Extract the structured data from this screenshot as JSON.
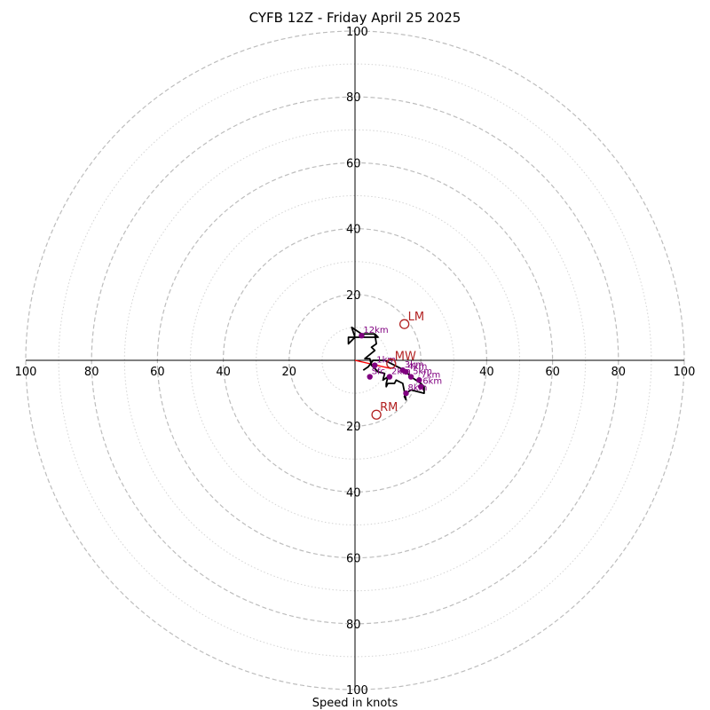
{
  "chart_data": {
    "type": "scatter",
    "title": "CYFB 12Z - Friday April 25 2025",
    "xlabel": "Speed in knots",
    "ring_max": 100,
    "major_rings": [
      20,
      40,
      60,
      80,
      100
    ],
    "minor_rings": [
      10,
      30,
      50,
      70,
      90
    ],
    "x_ticks": [
      {
        "value": -100,
        "label": "100"
      },
      {
        "value": -80,
        "label": "80"
      },
      {
        "value": -60,
        "label": "60"
      },
      {
        "value": -40,
        "label": "40"
      },
      {
        "value": -20,
        "label": "20"
      },
      {
        "value": 40,
        "label": "40"
      },
      {
        "value": 60,
        "label": "60"
      },
      {
        "value": 80,
        "label": "80"
      },
      {
        "value": 100,
        "label": "100"
      }
    ],
    "y_ticks": [
      {
        "value": 100,
        "label": "100"
      },
      {
        "value": 80,
        "label": "80"
      },
      {
        "value": 60,
        "label": "60"
      },
      {
        "value": 40,
        "label": "40"
      },
      {
        "value": 20,
        "label": "20"
      },
      {
        "value": -20,
        "label": "20"
      },
      {
        "value": -40,
        "label": "40"
      },
      {
        "value": -60,
        "label": "60"
      },
      {
        "value": -80,
        "label": "80"
      },
      {
        "value": -100,
        "label": "100"
      }
    ],
    "hodograph_trace": [
      [
        2.5,
        -3
      ],
      [
        4,
        -2
      ],
      [
        5.5,
        0
      ],
      [
        9,
        0
      ],
      [
        11,
        -1
      ],
      [
        13,
        -2
      ],
      [
        15,
        -3
      ],
      [
        16,
        -4
      ],
      [
        17,
        -5
      ],
      [
        18.5,
        -6
      ],
      [
        20,
        -7
      ],
      [
        21,
        -8
      ],
      [
        21,
        -10
      ],
      [
        17,
        -9
      ],
      [
        15.5,
        -10
      ],
      [
        15,
        -11
      ],
      [
        15.5,
        -12
      ],
      [
        14.5,
        -7
      ],
      [
        12.5,
        -6
      ],
      [
        12,
        -7
      ],
      [
        10,
        -7
      ],
      [
        9.5,
        -8
      ],
      [
        9.5,
        -7
      ],
      [
        10,
        -5
      ],
      [
        8.5,
        -6
      ],
      [
        9,
        -4
      ],
      [
        7,
        -3.5
      ],
      [
        5,
        -1.5
      ],
      [
        4.5,
        0.5
      ],
      [
        3,
        0.5
      ],
      [
        6,
        3
      ],
      [
        5,
        4
      ],
      [
        6.5,
        5
      ],
      [
        6,
        8
      ],
      [
        2,
        8
      ],
      [
        -1,
        10
      ],
      [
        0,
        7
      ],
      [
        -2,
        5
      ],
      [
        -2,
        7
      ],
      [
        7,
        7
      ],
      [
        6,
        8
      ]
    ],
    "height_markers": [
      {
        "label": "Sfc",
        "u": 4.5,
        "v": -5
      },
      {
        "label": "1km",
        "u": 6,
        "v": -1.5
      },
      {
        "label": "2km",
        "u": 10.5,
        "v": -5
      },
      {
        "label": "3km",
        "u": 14.5,
        "v": -3
      },
      {
        "label": "4km",
        "u": 15.5,
        "v": -3.5
      },
      {
        "label": "5km",
        "u": 17,
        "v": -5
      },
      {
        "label": "6km",
        "u": 20,
        "v": -8
      },
      {
        "label": "7km",
        "u": 19.5,
        "v": -6
      },
      {
        "label": "8km",
        "u": 15.5,
        "v": -10
      },
      {
        "label": "12km",
        "u": 2,
        "v": 7.5
      }
    ],
    "storm_motions": [
      {
        "label": "LM",
        "u": 15,
        "v": 11
      },
      {
        "label": "RM",
        "u": 6.5,
        "v": -16.5
      },
      {
        "label": "MW",
        "u": 11,
        "v": -1
      }
    ],
    "shear_vector": {
      "from": [
        0,
        0
      ],
      "to": [
        11,
        -2.5
      ]
    },
    "colors": {
      "trace": "#000000",
      "markers": "#800080",
      "storm_motion": "#b22222",
      "shear_vector": "#ff0000",
      "major_ring": "#bdbdbd",
      "minor_ring": "#d4d4d4"
    }
  }
}
